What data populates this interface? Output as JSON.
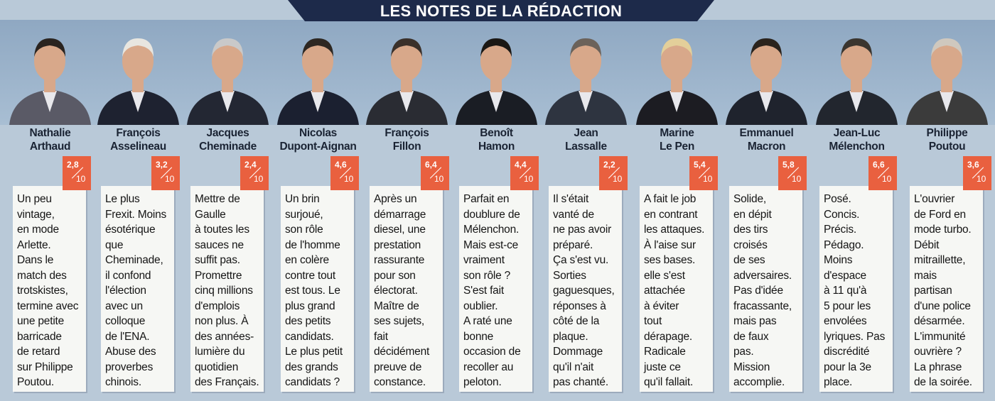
{
  "banner": {
    "title": "LES NOTES DE LA RÉDACTION"
  },
  "colors": {
    "banner": "#1d2a4a",
    "score_badge": "#e9603f",
    "card": "#f6f7f4",
    "background": "#b9c9d8"
  },
  "score_denominator": "10",
  "candidates": [
    {
      "name": [
        "Nathalie",
        "Arthaud"
      ],
      "score": "2,8",
      "text": [
        "Un peu",
        "vintage,",
        "en mode",
        "Arlette.",
        "Dans le",
        "match des",
        "trotskistes,",
        "termine avec",
        "une petite",
        "barricade",
        "de retard",
        "sur Philippe",
        "Poutou."
      ]
    },
    {
      "name": [
        "François",
        "Asselineau"
      ],
      "score": "3,2",
      "text": [
        "Le plus",
        "Frexit. Moins",
        "ésotérique",
        "que",
        "Cheminade,",
        "il confond",
        "l'élection",
        "avec un",
        "colloque",
        "de l'ENA.",
        "Abuse des",
        "proverbes",
        "chinois."
      ]
    },
    {
      "name": [
        "Jacques",
        "Cheminade"
      ],
      "score": "2,4",
      "text": [
        "Mettre de",
        "Gaulle",
        "à toutes les",
        "sauces ne",
        "suffit pas.",
        "Promettre",
        "cinq millions",
        "d'emplois",
        "non plus. À",
        "des années-",
        "lumière du",
        "quotidien",
        "des Français."
      ]
    },
    {
      "name": [
        "Nicolas",
        "Dupont-Aignan"
      ],
      "score": "4,6",
      "text": [
        "Un brin",
        "surjoué,",
        "son rôle",
        "de l'homme",
        "en colère",
        "contre tout",
        "est tous. Le",
        "plus grand",
        "des petits",
        "candidats.",
        "Le plus petit",
        "des grands",
        "candidats ?"
      ]
    },
    {
      "name": [
        "François",
        "Fillon"
      ],
      "score": "6,4",
      "text": [
        "Après un",
        "démarrage",
        "diesel, une",
        "prestation",
        "rassurante",
        "pour son",
        "électorat.",
        "Maître de",
        "ses sujets,",
        "fait",
        "décidément",
        "preuve de",
        "constance."
      ]
    },
    {
      "name": [
        "Benoît",
        "Hamon"
      ],
      "score": "4,4",
      "text": [
        "Parfait en",
        "doublure de",
        "Mélenchon.",
        "Mais est-ce",
        "vraiment",
        "son rôle ?",
        "S'est fait",
        "oublier.",
        "A raté une",
        "bonne",
        "occasion de",
        "recoller au",
        "peloton."
      ]
    },
    {
      "name": [
        "Jean",
        "Lassalle"
      ],
      "score": "2,2",
      "text": [
        "Il s'était",
        "vanté de",
        "ne pas avoir",
        "préparé.",
        "Ça s'est vu.",
        "Sorties",
        "gaguesques,",
        "réponses à",
        "côté de la",
        "plaque.",
        "Dommage",
        "qu'il n'ait",
        "pas chanté."
      ]
    },
    {
      "name": [
        "Marine",
        "Le Pen"
      ],
      "score": "5,4",
      "text": [
        "A fait le job",
        "en contrant",
        "les attaques.",
        "À l'aise sur",
        "ses bases.",
        "elle s'est",
        "attachée",
        "à éviter",
        "tout",
        "dérapage.",
        "Radicale",
        "juste ce",
        "qu'il fallait."
      ]
    },
    {
      "name": [
        "Emmanuel",
        "Macron"
      ],
      "score": "5,8",
      "text": [
        "Solide,",
        "en dépit",
        "des tirs",
        "croisés",
        "de ses",
        "adversaires.",
        "Pas d'idée",
        "fracassante,",
        "mais pas",
        "de faux",
        "pas.",
        "Mission",
        "accomplie."
      ]
    },
    {
      "name": [
        "Jean-Luc",
        "Mélenchon"
      ],
      "score": "6,6",
      "text": [
        "Posé.",
        "Concis.",
        "Précis.",
        "Pédago.",
        "Moins",
        "d'espace",
        "à 11 qu'à",
        "5 pour les",
        "envolées",
        "lyriques. Pas",
        "discrédité",
        "pour la 3e",
        "place."
      ]
    },
    {
      "name": [
        "Philippe",
        "Poutou"
      ],
      "score": "3,6",
      "text": [
        "L'ouvrier",
        "de Ford en",
        "mode turbo.",
        "Débit",
        "mitraillette,",
        "mais",
        "partisan",
        "d'une police",
        "désarmée.",
        "L'immunité",
        "ouvrière ?",
        "La phrase",
        "de la soirée."
      ]
    }
  ]
}
